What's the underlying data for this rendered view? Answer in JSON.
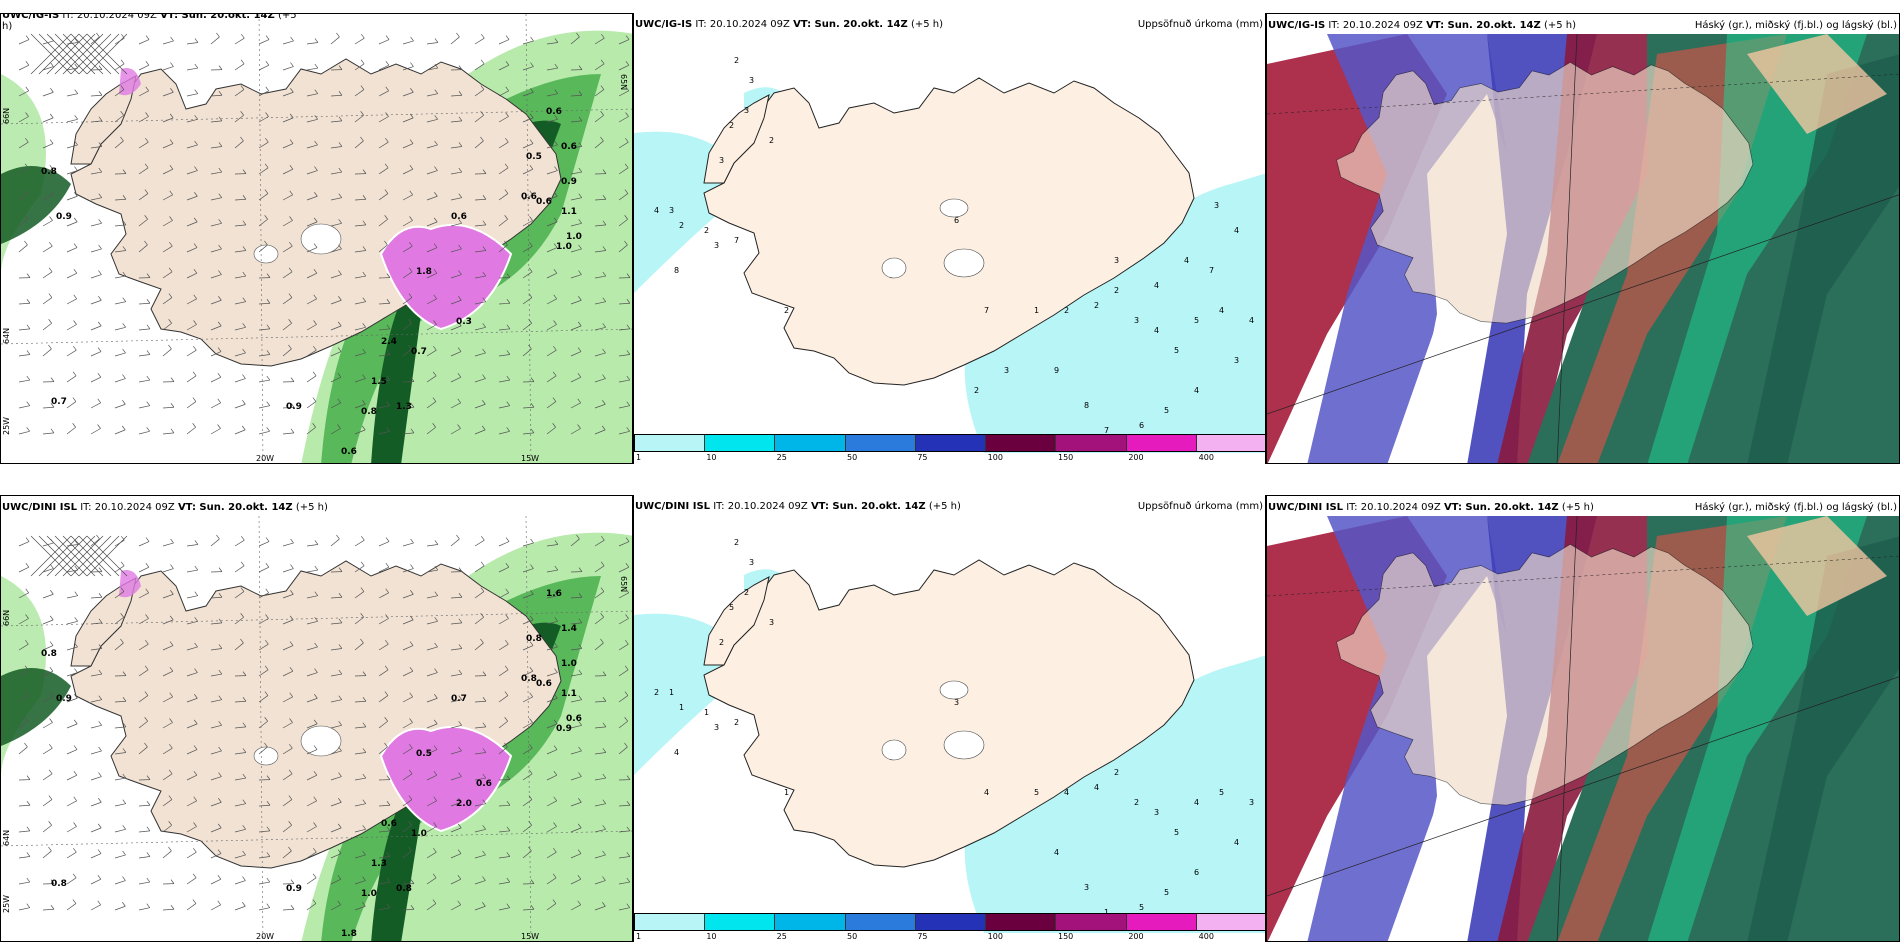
{
  "panels": {
    "top_left": {
      "model": "UWC/IG-IS",
      "it": "IT: 20.10.2024 09Z",
      "vt": "VT: Sun. 20.okt. 14Z",
      "lead": "(+5",
      "lead2": "h)"
    },
    "top_mid": {
      "model": "UWC/IG-IS",
      "it": "IT: 20.10.2024 09Z",
      "vt": "VT: Sun. 20.okt. 14Z",
      "lead": "(+5 h)",
      "right": "Uppsöfnuð úrkoma (mm)"
    },
    "top_right": {
      "model": "UWC/IG-IS",
      "it": "IT: 20.10.2024 09Z",
      "vt": "VT: Sun. 20.okt. 14Z",
      "lead": "(+5 h)",
      "right": "Háský (gr.), miðský (fj.bl.) og lágský (bl.)"
    },
    "bot_left": {
      "model": "UWC/DINI ISL",
      "it": "IT: 20.10.2024 09Z",
      "vt": "VT: Sun. 20.okt. 14Z",
      "lead": "(+5 h)"
    },
    "bot_mid": {
      "model": "UWC/DINI ISL",
      "it": "IT: 20.10.2024 09Z",
      "vt": "VT: Sun. 20.okt. 14Z",
      "lead": "(+5 h)",
      "right": "Uppsöfnuð úrkoma (mm)"
    },
    "bot_right": {
      "model": "UWC/DINI ISL",
      "it": "IT: 20.10.2024 09Z",
      "vt": "VT: Sun. 20.okt. 14Z",
      "lead": "(+5 h)",
      "right": "Háský (gr.), miðský (fj.bl.) og lágský (bl.)"
    }
  },
  "grid_labels": {
    "lat65": "65N",
    "lat64": "64N",
    "lat66": "66N",
    "lon20": "20W",
    "lon15": "15W",
    "lon25": "25W"
  },
  "colorbar": {
    "labels": [
      "1",
      "10",
      "25",
      "50",
      "75",
      "100",
      "150",
      "200",
      "400"
    ],
    "colors": [
      "#b8f5f7",
      "#00e5ee",
      "#00b5e8",
      "#2a7bdc",
      "#2432b8",
      "#6b003f",
      "#a3127a",
      "#e61bbd",
      "#f4b1f2"
    ]
  },
  "precip_labels_top": [
    "2",
    "3",
    "3",
    "2",
    "2",
    "3",
    "4",
    "3",
    "2",
    "2",
    "3",
    "7",
    "8",
    "2",
    "6",
    "7",
    "1",
    "2",
    "2",
    "2",
    "3",
    "4",
    "5",
    "5",
    "4",
    "4",
    "3",
    "4",
    "5",
    "6",
    "7",
    "8",
    "9",
    "3",
    "2",
    "3",
    "4",
    "7",
    "4",
    "4",
    "3"
  ],
  "precip_labels_bot": [
    "2",
    "3",
    "2",
    "5",
    "3",
    "2",
    "2",
    "1",
    "1",
    "1",
    "3",
    "2",
    "4",
    "1",
    "3",
    "4",
    "5",
    "4",
    "4",
    "2",
    "2",
    "3",
    "5",
    "4",
    "5",
    "3",
    "4",
    "6",
    "5",
    "5",
    "1",
    "3",
    "4"
  ],
  "snow_labels_top": [
    "0.8",
    "0.9",
    "0.7",
    "0.6",
    "0.6",
    "0.5",
    "0.6",
    "1.1",
    "0.9",
    "1.0",
    "0.6",
    "0.6",
    "1.0",
    "1.8",
    "2.4",
    "0.7",
    "0.9",
    "1.5",
    "0.6",
    "0.8",
    "1.3",
    "0.3"
  ],
  "snow_labels_bot": [
    "0.8",
    "0.9",
    "0.8",
    "1.6",
    "1.4",
    "0.8",
    "0.7",
    "1.1",
    "1.0",
    "0.6",
    "0.8",
    "0.6",
    "0.9",
    "0.5",
    "0.6",
    "1.0",
    "0.9",
    "1.3",
    "1.8",
    "1.0",
    "0.8",
    "2.0",
    "0.6"
  ],
  "colors": {
    "land": "#f1e2d3",
    "land_precip": "#fdf0e3",
    "precip_fill": "#b8f5f7",
    "snow_light": "#b4e9a8",
    "snow_mid": "#59b85a",
    "snow_dark": "#145c25",
    "snow_magenta": "#e07ae2"
  }
}
